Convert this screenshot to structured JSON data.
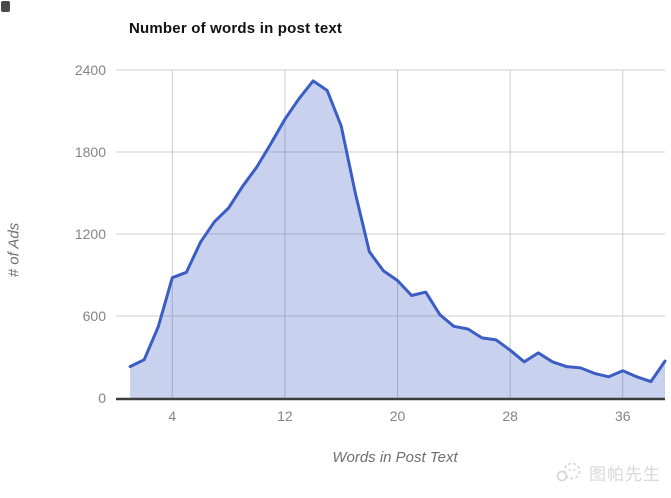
{
  "watermark": {
    "text": "图帕先生"
  },
  "chart_data": {
    "type": "area",
    "title": "Number of words in post text",
    "xlabel": "Words in Post Text",
    "ylabel": "# of Ads",
    "x": [
      1,
      2,
      3,
      4,
      5,
      6,
      7,
      8,
      9,
      10,
      11,
      12,
      13,
      14,
      15,
      16,
      17,
      18,
      19,
      20,
      21,
      22,
      23,
      24,
      25,
      26,
      27,
      28,
      29,
      30,
      31,
      32,
      33,
      34,
      35,
      36,
      37,
      38,
      39
    ],
    "values": [
      230,
      280,
      520,
      880,
      920,
      1140,
      1290,
      1390,
      1550,
      1690,
      1860,
      2040,
      2190,
      2320,
      2250,
      1990,
      1500,
      1070,
      930,
      860,
      750,
      775,
      610,
      525,
      505,
      440,
      425,
      350,
      265,
      330,
      265,
      230,
      220,
      180,
      155,
      200,
      155,
      120,
      270
    ],
    "x_ticks": [
      4,
      12,
      20,
      28,
      36
    ],
    "y_ticks": [
      0,
      600,
      1200,
      1800,
      2400
    ],
    "xlim": [
      0,
      39
    ],
    "ylim": [
      0,
      2400
    ],
    "grid": true,
    "legend": "none",
    "colors": {
      "line": "#3b5dc4",
      "fill_opacity": 0.28,
      "grid": "#cccccc",
      "axis_line": "#3d3d3d",
      "tick_text": "#848484",
      "axis_title_text": "#6f6f6f",
      "title_text": "#111111",
      "watermark": "#d4d4d4"
    }
  }
}
